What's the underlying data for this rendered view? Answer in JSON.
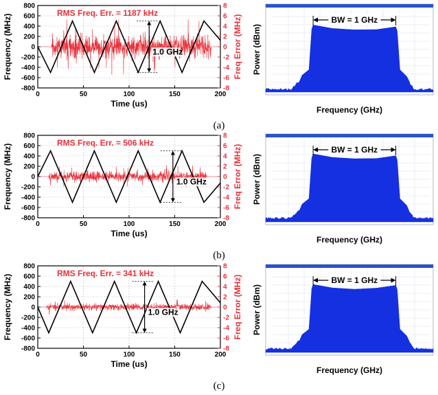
{
  "figure": {
    "panels": [
      {
        "caption": "(a)"
      },
      {
        "caption": "(b)"
      },
      {
        "caption": "(c)"
      }
    ]
  },
  "colors": {
    "frequency_trace": "#000000",
    "error_trace": "#e8303a",
    "axis_red": "#e8303a",
    "spectrum": "#1530e0",
    "spectrum_bg": "#ffffff",
    "spectrum_header": "#2b52c8"
  },
  "chart_data": [
    {
      "type": "line",
      "panel": "a",
      "annotation": "RMS Freq. Err. = 1187 kHz",
      "span_label": "1.0 GHz",
      "xlabel": "Time (us)",
      "ylabel": "Frequency (MHz)",
      "y2label": "Freq Error (MHz)",
      "xlim": [
        0,
        200
      ],
      "ylim": [
        -800,
        800
      ],
      "y2lim": [
        -8,
        8
      ],
      "xticks": [
        "0",
        "50",
        "100",
        "150",
        "200"
      ],
      "yticks": [
        "-800",
        "-600",
        "-400",
        "-200",
        "0",
        "200",
        "400",
        "600",
        "800"
      ],
      "y2ticks": [
        "-8",
        "-6",
        "-4",
        "-2",
        "0",
        "2",
        "4",
        "6",
        "8"
      ],
      "grid": true,
      "series": [
        {
          "role": "frequency",
          "axis": "left",
          "x": [
            0,
            14,
            38,
            62,
            86,
            110,
            134,
            158,
            182,
            200
          ],
          "y": [
            0,
            -500,
            500,
            -500,
            500,
            -500,
            500,
            -500,
            500,
            125
          ]
        },
        {
          "role": "error",
          "axis": "right",
          "x_range": [
            15,
            190
          ],
          "rms_mhz": 1.187,
          "peak_mhz": 5.5
        }
      ]
    },
    {
      "type": "line",
      "panel": "b",
      "annotation": "RMS Freq. Err. = 506 kHz",
      "span_label": "1.0 GHz",
      "xlabel": "Time (us)",
      "ylabel": "Frequency (MHz)",
      "y2label": "Freq Error (MHz)",
      "xlim": [
        0,
        200
      ],
      "ylim": [
        -800,
        800
      ],
      "y2lim": [
        -8,
        8
      ],
      "xticks": [
        "0",
        "50",
        "100",
        "150",
        "200"
      ],
      "yticks": [
        "-800",
        "-600",
        "-400",
        "-200",
        "0",
        "200",
        "400",
        "600",
        "800"
      ],
      "y2ticks": [
        "-8",
        "-6",
        "-4",
        "-2",
        "0",
        "2",
        "4",
        "6",
        "8"
      ],
      "grid": true,
      "series": [
        {
          "role": "frequency",
          "axis": "left",
          "x": [
            0,
            14,
            38,
            62,
            86,
            110,
            134,
            158,
            182,
            200
          ],
          "y": [
            0,
            500,
            -500,
            500,
            -500,
            500,
            -500,
            500,
            -500,
            -125
          ]
        },
        {
          "role": "error",
          "axis": "right",
          "x_range": [
            12,
            185
          ],
          "rms_mhz": 0.506,
          "peak_mhz": 2.2
        }
      ]
    },
    {
      "type": "line",
      "panel": "c",
      "annotation": "RMS Freq. Err. = 341 kHz",
      "span_label": "1.0 GHz",
      "xlabel": "Time (us)",
      "ylabel": "Frequency (MHz)",
      "y2label": "Freq Error (MHz)",
      "xlim": [
        0,
        200
      ],
      "ylim": [
        -800,
        800
      ],
      "y2lim": [
        -8,
        8
      ],
      "xticks": [
        "0",
        "50",
        "100",
        "150",
        "200"
      ],
      "yticks": [
        "-800",
        "-600",
        "-400",
        "-200",
        "0",
        "200",
        "400",
        "600",
        "800"
      ],
      "y2ticks": [
        "-8",
        "-6",
        "-4",
        "-2",
        "0",
        "2",
        "4",
        "6",
        "8"
      ],
      "grid": true,
      "series": [
        {
          "role": "frequency",
          "axis": "left",
          "x": [
            0,
            12,
            36,
            60,
            84,
            108,
            132,
            156,
            180,
            200
          ],
          "y": [
            0,
            -500,
            500,
            -500,
            500,
            -500,
            500,
            -500,
            500,
            83
          ]
        },
        {
          "role": "error",
          "axis": "right",
          "x_range": [
            10,
            190
          ],
          "rms_mhz": 0.341,
          "peak_mhz": 1.5
        }
      ]
    },
    {
      "type": "area",
      "panel": "a",
      "annotation": "BW = 1 GHz",
      "xlabel": "Frequency (GHz)",
      "ylabel": "Power (dBm)",
      "shape": {
        "left_edge": 0.275,
        "right_edge": 0.785,
        "left_level": 0.23,
        "right_level": 0.25,
        "floor": 0.95
      }
    },
    {
      "type": "area",
      "panel": "b",
      "annotation": "BW = 1 GHz",
      "xlabel": "Frequency (GHz)",
      "ylabel": "Power (dBm)",
      "shape": {
        "left_edge": 0.275,
        "right_edge": 0.785,
        "left_level": 0.22,
        "right_level": 0.24,
        "floor": 0.94
      }
    },
    {
      "type": "area",
      "panel": "c",
      "annotation": "BW = 1 GHz",
      "xlabel": "Frequency (GHz)",
      "ylabel": "Power (dBm)",
      "shape": {
        "left_edge": 0.275,
        "right_edge": 0.785,
        "left_level": 0.22,
        "right_level": 0.23,
        "floor": 0.94
      }
    }
  ]
}
